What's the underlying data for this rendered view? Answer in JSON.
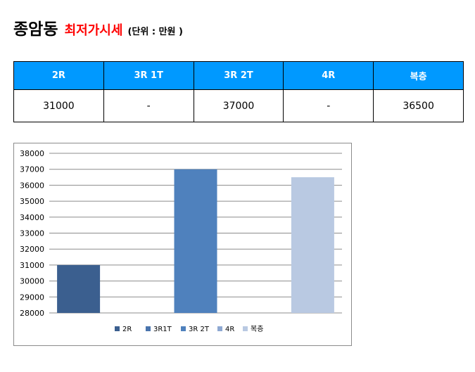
{
  "title": {
    "main": "종암동",
    "sub": "최저가시세",
    "unit": "(단위 : 만원 )"
  },
  "table": {
    "headers": [
      "2R",
      "3R 1T",
      "3R 2T",
      "4R",
      "복층"
    ],
    "values": [
      "31000",
      "-",
      "37000",
      "-",
      "36500"
    ]
  },
  "chart_data": {
    "type": "bar",
    "categories": [
      ""
    ],
    "series": [
      {
        "name": "2R",
        "values": [
          31000
        ],
        "color": "#3b5f8f"
      },
      {
        "name": "3R1T",
        "values": [
          null
        ],
        "color": "#4a74ad"
      },
      {
        "name": "3R 2T",
        "values": [
          37000
        ],
        "color": "#4f81bd"
      },
      {
        "name": "4R",
        "values": [
          null
        ],
        "color": "#8ea8d2"
      },
      {
        "name": "복층",
        "values": [
          36500
        ],
        "color": "#b9c9e2"
      }
    ],
    "ylim": [
      28000,
      38000
    ],
    "yticks": [
      28000,
      29000,
      30000,
      31000,
      32000,
      33000,
      34000,
      35000,
      36000,
      37000,
      38000
    ],
    "grid": true,
    "legend": "bottom"
  }
}
